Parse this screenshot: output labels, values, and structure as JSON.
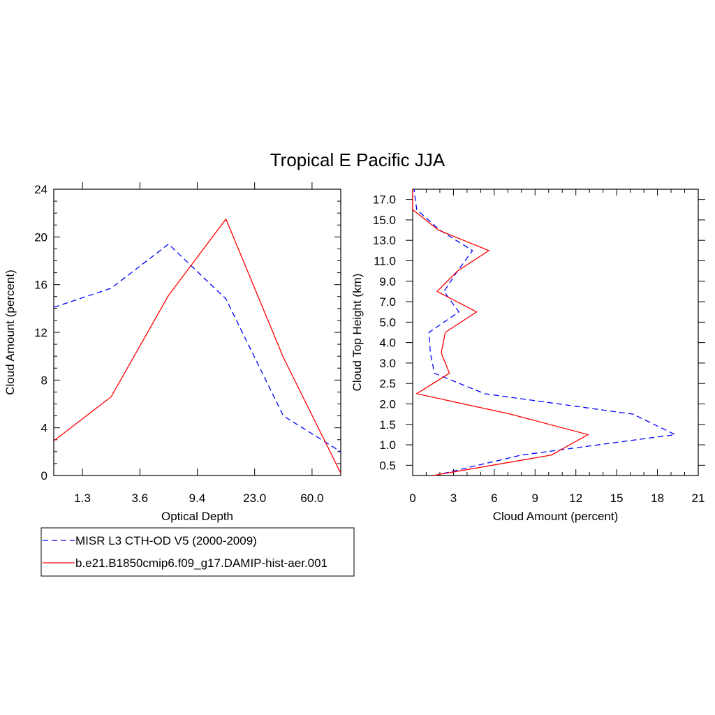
{
  "figure": {
    "title": "Tropical E Pacific JJA"
  },
  "legend": {
    "entries": [
      {
        "label": "MISR L3 CTH-OD V5 (2000-2009)",
        "color": "#0000ff",
        "dashed": true
      },
      {
        "label": "b.e21.B1850cmip6.f09_g17.DAMIP-hist-aer.001",
        "color": "#ff0000",
        "dashed": false
      }
    ]
  },
  "chart_data": [
    {
      "type": "line",
      "title": "",
      "xlabel": "Optical Depth",
      "ylabel": "Cloud Amount (percent)",
      "x": [
        0,
        1,
        2,
        3,
        4,
        5
      ],
      "x_tick_positions": [
        0.5,
        1.5,
        2.5,
        3.5,
        4.5
      ],
      "x_tick_labels": [
        "1.3",
        "3.6",
        "9.4",
        "23.0",
        "60.0"
      ],
      "xlim": [
        0,
        5
      ],
      "ylim": [
        0,
        24
      ],
      "y_ticks": [
        0,
        4,
        8,
        12,
        16,
        20,
        24
      ],
      "series": [
        {
          "name": "MISR L3 CTH-OD V5 (2000-2009)",
          "color": "#0000ff",
          "dashed": true,
          "values": [
            14.1,
            15.7,
            19.4,
            14.8,
            5.0,
            2.0
          ]
        },
        {
          "name": "b.e21.B1850cmip6.f09_g17.DAMIP-hist-aer.001",
          "color": "#ff0000",
          "dashed": false,
          "values": [
            2.9,
            6.6,
            15.1,
            21.5,
            9.9,
            0.2
          ]
        }
      ]
    },
    {
      "type": "line",
      "title": "",
      "xlabel": "Cloud Amount (percent)",
      "ylabel": "Cloud Top Height (km)",
      "xlim": [
        0,
        21
      ],
      "x_ticks": [
        0,
        3,
        6,
        9,
        12,
        15,
        18,
        21
      ],
      "ylim": [
        0,
        14
      ],
      "y_tick_positions": [
        0.5,
        1.5,
        2.5,
        3.5,
        4.5,
        5.5,
        6.5,
        7.5,
        8.5,
        9.5,
        10.5,
        11.5,
        12.5,
        13.5
      ],
      "y_tick_labels": [
        "0.5",
        "1.0",
        "1.5",
        "2.0",
        "2.5",
        "3.0",
        "4.0",
        "5.0",
        "7.0",
        "9.0",
        "11.0",
        "13.0",
        "15.0",
        "17.0"
      ],
      "y": [
        0,
        1,
        2,
        3,
        4,
        5,
        6,
        7,
        8,
        9,
        10,
        11,
        12,
        13,
        14
      ],
      "series": [
        {
          "name": "MISR L3 CTH-OD V5 (2000-2009)",
          "color": "#0000ff",
          "dashed": true,
          "values": [
            1.6,
            8.0,
            19.3,
            16.2,
            5.3,
            1.6,
            1.3,
            1.2,
            3.4,
            2.3,
            3.3,
            4.4,
            2.0,
            0.3,
            0.1
          ]
        },
        {
          "name": "b.e21.B1850cmip6.f09_g17.DAMIP-hist-aer.001",
          "color": "#ff0000",
          "dashed": false,
          "values": [
            1.5,
            10.2,
            12.9,
            7.2,
            0.3,
            2.7,
            2.1,
            2.4,
            4.7,
            1.8,
            3.3,
            5.6,
            1.9,
            0.0,
            0.0
          ]
        }
      ]
    }
  ]
}
